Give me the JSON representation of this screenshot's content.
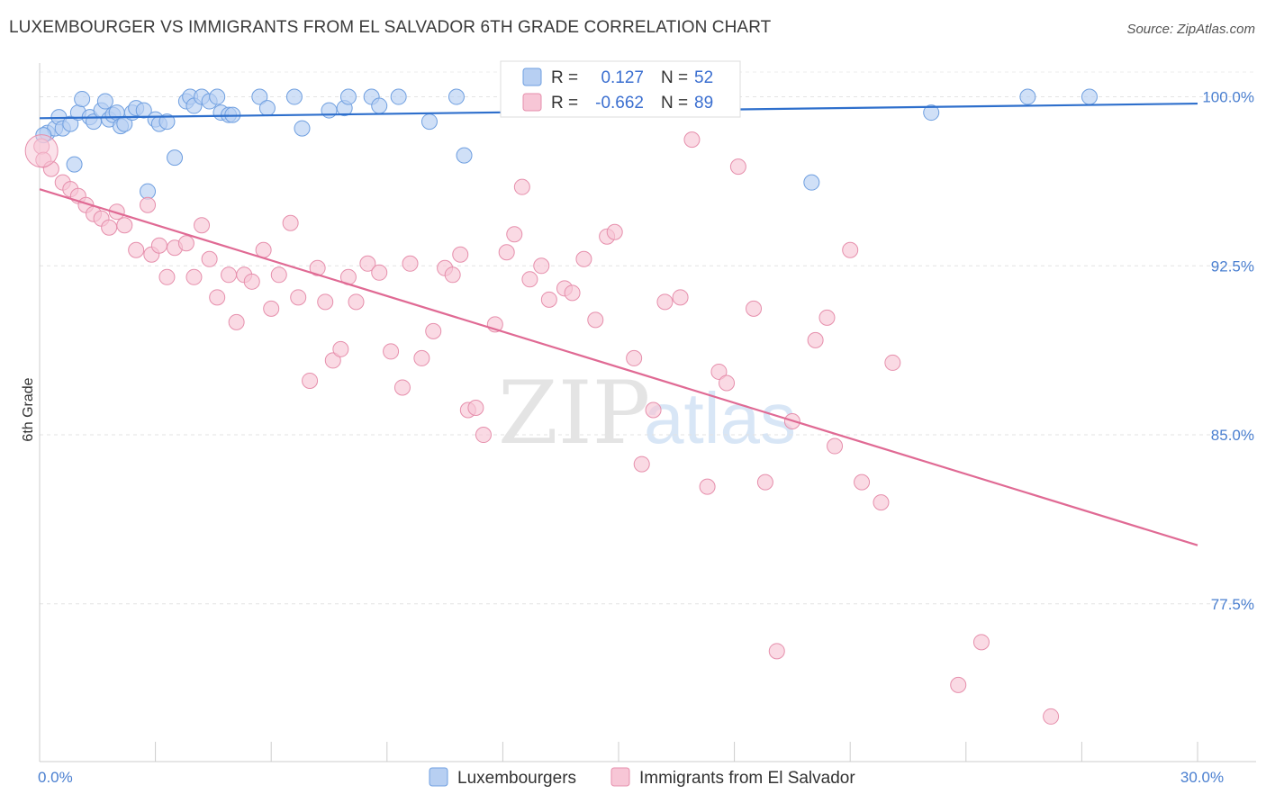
{
  "title": "LUXEMBOURGER VS IMMIGRANTS FROM EL SALVADOR 6TH GRADE CORRELATION CHART",
  "source": "Source: ZipAtlas.com",
  "watermark": {
    "zip": "ZIP",
    "atlas": "atlas"
  },
  "chart_data": {
    "type": "scatter",
    "title": "LUXEMBOURGER VS IMMIGRANTS FROM EL SALVADOR 6TH GRADE CORRELATION CHART",
    "xlabel": "",
    "ylabel": "6th Grade",
    "xlim": [
      0,
      30
    ],
    "ylim": [
      70.5,
      101.5
    ],
    "x_ticks": [
      0,
      3,
      6,
      9,
      12,
      15,
      18,
      21,
      24,
      27,
      30
    ],
    "x_tick_labels": [
      {
        "value": 0,
        "label": "0.0%"
      },
      {
        "value": 30,
        "label": "30.0%"
      }
    ],
    "y_ticks": [
      {
        "value": 100,
        "label": "100.0%"
      },
      {
        "value": 92.5,
        "label": "92.5%"
      },
      {
        "value": 85,
        "label": "85.0%"
      },
      {
        "value": 77.5,
        "label": "77.5%"
      }
    ],
    "grid": true,
    "legend": {
      "position": "top-center",
      "entries": [
        {
          "r_label": "R =",
          "r_value": "0.127",
          "n_label": "N =",
          "n_value": "52"
        },
        {
          "r_label": "R =",
          "r_value": "-0.662",
          "n_label": "N =",
          "n_value": "89"
        }
      ]
    },
    "series": [
      {
        "name": "Luxembourgers",
        "color": "#6f9fe0",
        "fill": "#b7cff2",
        "line_color": "#2e6fcc",
        "trend": {
          "x0": 0,
          "y0": 99.05,
          "x1": 30,
          "y1": 99.7
        },
        "points": [
          [
            0.2,
            98.4
          ],
          [
            0.4,
            98.6
          ],
          [
            0.5,
            99.1
          ],
          [
            0.6,
            98.6
          ],
          [
            0.8,
            98.8
          ],
          [
            0.9,
            97.0
          ],
          [
            1.0,
            99.3
          ],
          [
            1.1,
            99.9
          ],
          [
            1.3,
            99.1
          ],
          [
            1.4,
            98.9
          ],
          [
            1.6,
            99.4
          ],
          [
            1.7,
            99.8
          ],
          [
            1.8,
            99.0
          ],
          [
            1.9,
            99.2
          ],
          [
            2.0,
            99.3
          ],
          [
            2.1,
            98.7
          ],
          [
            2.2,
            98.8
          ],
          [
            2.4,
            99.3
          ],
          [
            2.5,
            99.5
          ],
          [
            2.7,
            99.4
          ],
          [
            2.8,
            95.8
          ],
          [
            3.0,
            99.0
          ],
          [
            3.1,
            98.8
          ],
          [
            3.3,
            98.9
          ],
          [
            3.5,
            97.3
          ],
          [
            3.8,
            99.8
          ],
          [
            3.9,
            100.0
          ],
          [
            4.0,
            99.6
          ],
          [
            4.2,
            100.0
          ],
          [
            4.4,
            99.8
          ],
          [
            4.6,
            100.0
          ],
          [
            4.7,
            99.3
          ],
          [
            4.9,
            99.2
          ],
          [
            5.0,
            99.2
          ],
          [
            5.7,
            100.0
          ],
          [
            5.9,
            99.5
          ],
          [
            6.6,
            100.0
          ],
          [
            6.8,
            98.6
          ],
          [
            7.5,
            99.4
          ],
          [
            7.9,
            99.5
          ],
          [
            8.0,
            100.0
          ],
          [
            8.6,
            100.0
          ],
          [
            8.8,
            99.6
          ],
          [
            9.3,
            100.0
          ],
          [
            10.1,
            98.9
          ],
          [
            10.8,
            100.0
          ],
          [
            11.0,
            97.4
          ],
          [
            20.0,
            96.2
          ],
          [
            23.1,
            99.3
          ],
          [
            25.6,
            100.0
          ],
          [
            27.2,
            100.0
          ],
          [
            0.1,
            98.3
          ]
        ]
      },
      {
        "name": "Immigrants from El Salvador",
        "color": "#e68fac",
        "fill": "#f7c6d6",
        "line_color": "#e06a94",
        "trend": {
          "x0": 0,
          "y0": 95.9,
          "x1": 30,
          "y1": 80.1
        },
        "points": [
          [
            0.05,
            97.8
          ],
          [
            0.1,
            97.2
          ],
          [
            0.3,
            96.8
          ],
          [
            0.6,
            96.2
          ],
          [
            0.8,
            95.9
          ],
          [
            1.0,
            95.6
          ],
          [
            1.2,
            95.2
          ],
          [
            1.4,
            94.8
          ],
          [
            1.6,
            94.6
          ],
          [
            1.8,
            94.2
          ],
          [
            2.0,
            94.9
          ],
          [
            2.2,
            94.3
          ],
          [
            2.5,
            93.2
          ],
          [
            2.8,
            95.2
          ],
          [
            2.9,
            93.0
          ],
          [
            3.1,
            93.4
          ],
          [
            3.3,
            92.0
          ],
          [
            3.5,
            93.3
          ],
          [
            3.8,
            93.5
          ],
          [
            4.0,
            92.0
          ],
          [
            4.2,
            94.3
          ],
          [
            4.4,
            92.8
          ],
          [
            4.6,
            91.1
          ],
          [
            4.9,
            92.1
          ],
          [
            5.1,
            90.0
          ],
          [
            5.3,
            92.1
          ],
          [
            5.5,
            91.8
          ],
          [
            5.8,
            93.2
          ],
          [
            6.0,
            90.6
          ],
          [
            6.2,
            92.1
          ],
          [
            6.5,
            94.4
          ],
          [
            6.7,
            91.1
          ],
          [
            7.0,
            87.4
          ],
          [
            7.2,
            92.4
          ],
          [
            7.4,
            90.9
          ],
          [
            7.6,
            88.3
          ],
          [
            7.8,
            88.8
          ],
          [
            8.0,
            92.0
          ],
          [
            8.2,
            90.9
          ],
          [
            8.5,
            92.6
          ],
          [
            8.8,
            92.2
          ],
          [
            9.1,
            88.7
          ],
          [
            9.4,
            87.1
          ],
          [
            9.6,
            92.6
          ],
          [
            9.9,
            88.4
          ],
          [
            10.2,
            89.6
          ],
          [
            10.5,
            92.4
          ],
          [
            10.7,
            92.1
          ],
          [
            10.9,
            93.0
          ],
          [
            11.1,
            86.1
          ],
          [
            11.3,
            86.2
          ],
          [
            11.5,
            85.0
          ],
          [
            11.8,
            89.9
          ],
          [
            12.1,
            93.1
          ],
          [
            12.3,
            93.9
          ],
          [
            12.5,
            96.0
          ],
          [
            12.7,
            91.9
          ],
          [
            13.0,
            92.5
          ],
          [
            13.2,
            91.0
          ],
          [
            13.6,
            91.5
          ],
          [
            13.8,
            91.3
          ],
          [
            14.1,
            92.8
          ],
          [
            14.4,
            90.1
          ],
          [
            14.7,
            93.8
          ],
          [
            14.9,
            94.0
          ],
          [
            15.4,
            88.4
          ],
          [
            15.6,
            83.7
          ],
          [
            15.9,
            86.1
          ],
          [
            16.2,
            90.9
          ],
          [
            16.6,
            91.1
          ],
          [
            16.9,
            98.1
          ],
          [
            17.3,
            82.7
          ],
          [
            17.6,
            87.8
          ],
          [
            17.8,
            87.3
          ],
          [
            18.1,
            96.9
          ],
          [
            18.5,
            90.6
          ],
          [
            18.8,
            82.9
          ],
          [
            19.1,
            75.4
          ],
          [
            19.5,
            85.6
          ],
          [
            20.1,
            89.2
          ],
          [
            20.4,
            90.2
          ],
          [
            20.6,
            84.5
          ],
          [
            21.0,
            93.2
          ],
          [
            21.3,
            82.9
          ],
          [
            21.8,
            82.0
          ],
          [
            22.1,
            88.2
          ],
          [
            23.8,
            73.9
          ],
          [
            24.4,
            75.8
          ],
          [
            26.2,
            72.5
          ]
        ]
      }
    ]
  }
}
